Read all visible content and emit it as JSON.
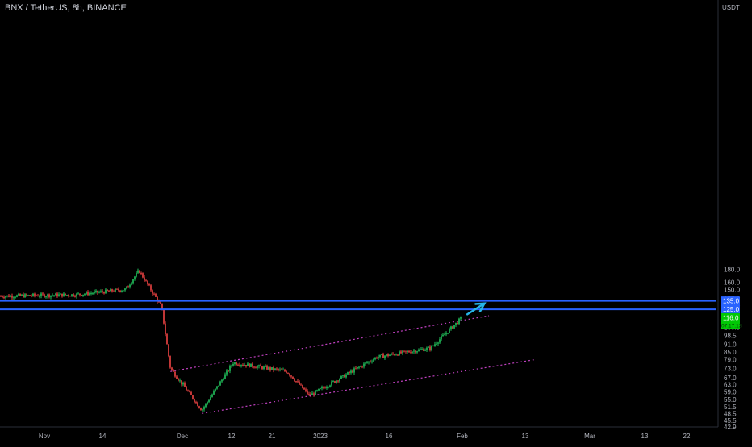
{
  "header": {
    "title": "BNX / TetherUS, 8h, BINANCE"
  },
  "price_axis": {
    "unit": "USDT",
    "ticks": [
      "180.0",
      "160.0",
      "150.0",
      "138.0",
      "130.0",
      "122.0",
      "106.0",
      "98.5",
      "91.0",
      "85.0",
      "79.0",
      "73.0",
      "67.0",
      "63.0",
      "59.0",
      "55.0",
      "51.5",
      "48.5",
      "45.5",
      "42.9"
    ],
    "tags": [
      {
        "label": "135.0",
        "kind": "level",
        "color": "#2962ff"
      },
      {
        "label": "125.0",
        "kind": "level",
        "color": "#2962ff"
      },
      {
        "label": "116.0",
        "sublabel": "07:17:13",
        "kind": "last-price",
        "color": "#00c805"
      }
    ]
  },
  "time_axis": {
    "labels": [
      "Nov",
      "14",
      "Dec",
      "12",
      "21",
      "2023",
      "16",
      "Feb",
      "13",
      "Mar",
      "13",
      "22"
    ]
  },
  "chart_data": {
    "type": "candlestick",
    "title": "BNX / TetherUS, 8h, BINANCE",
    "y_unit": "USDT",
    "y_scale": "log",
    "ylim": [
      42.9,
      200
    ],
    "colors": {
      "up": "#22c55e",
      "down": "#ef4444"
    },
    "candles_summary": [
      {
        "date": "Oct 28",
        "price": 141
      },
      {
        "date": "Nov 14",
        "price": 143
      },
      {
        "date": "Nov 25",
        "price": 150
      },
      {
        "date": "Nov 28",
        "price": 178
      },
      {
        "date": "Dec 3",
        "price": 128
      },
      {
        "date": "Dec 5",
        "price": 73
      },
      {
        "date": "Dec 12",
        "price": 50
      },
      {
        "date": "Dec 19",
        "price": 77
      },
      {
        "date": "Dec 31",
        "price": 71
      },
      {
        "date": "Jan 5",
        "price": 57
      },
      {
        "date": "Jan 20",
        "price": 81
      },
      {
        "date": "Feb 1",
        "price": 88
      },
      {
        "date": "Feb 8",
        "price": 116
      }
    ],
    "horizontal_levels": [
      135.0,
      125.0
    ],
    "channel": {
      "upper": [
        {
          "date": "Dec 5",
          "price": 71
        },
        {
          "date": "Feb 14",
          "price": 118
        }
      ],
      "lower": [
        {
          "date": "Dec 12",
          "price": 48.5
        },
        {
          "date": "Feb 24",
          "price": 79
        }
      ],
      "style": "dotted",
      "color": "#c040c0"
    },
    "projection_arrow": {
      "from": {
        "date": "Feb 9",
        "price": 119
      },
      "to": {
        "date": "Feb 13",
        "price": 132
      },
      "color": "#26b5e8"
    },
    "last_price": 116.0,
    "countdown": "07:17:13"
  }
}
